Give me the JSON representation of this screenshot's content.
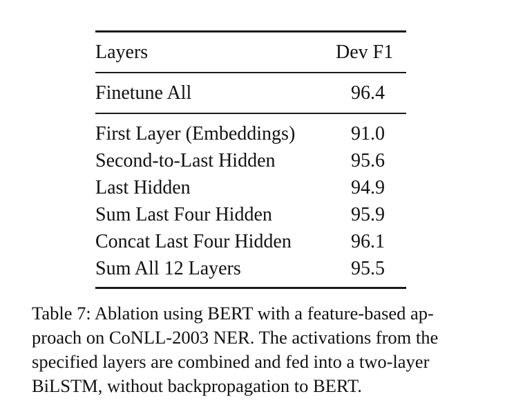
{
  "table": {
    "headers": {
      "layers": "Layers",
      "dev_f1": "Dev F1"
    },
    "finetune": {
      "label": "Finetune All",
      "value": "96.4"
    },
    "rows": [
      {
        "label": "First Layer (Embeddings)",
        "value": "91.0"
      },
      {
        "label": "Second-to-Last Hidden",
        "value": "95.6"
      },
      {
        "label": "Last Hidden",
        "value": "94.9"
      },
      {
        "label": "Sum Last Four Hidden",
        "value": "95.9"
      },
      {
        "label": "Concat Last Four Hidden",
        "value": "96.1"
      },
      {
        "label": "Sum All 12 Layers",
        "value": "95.5"
      }
    ]
  },
  "caption": {
    "lines": [
      "Table 7: Ablation using BERT with a feature-based ap-",
      "proach on CoNLL-2003 NER. The activations from the",
      "specified layers are combined and fed into a two-layer",
      "BiLSTM, without backpropagation to BERT."
    ]
  }
}
